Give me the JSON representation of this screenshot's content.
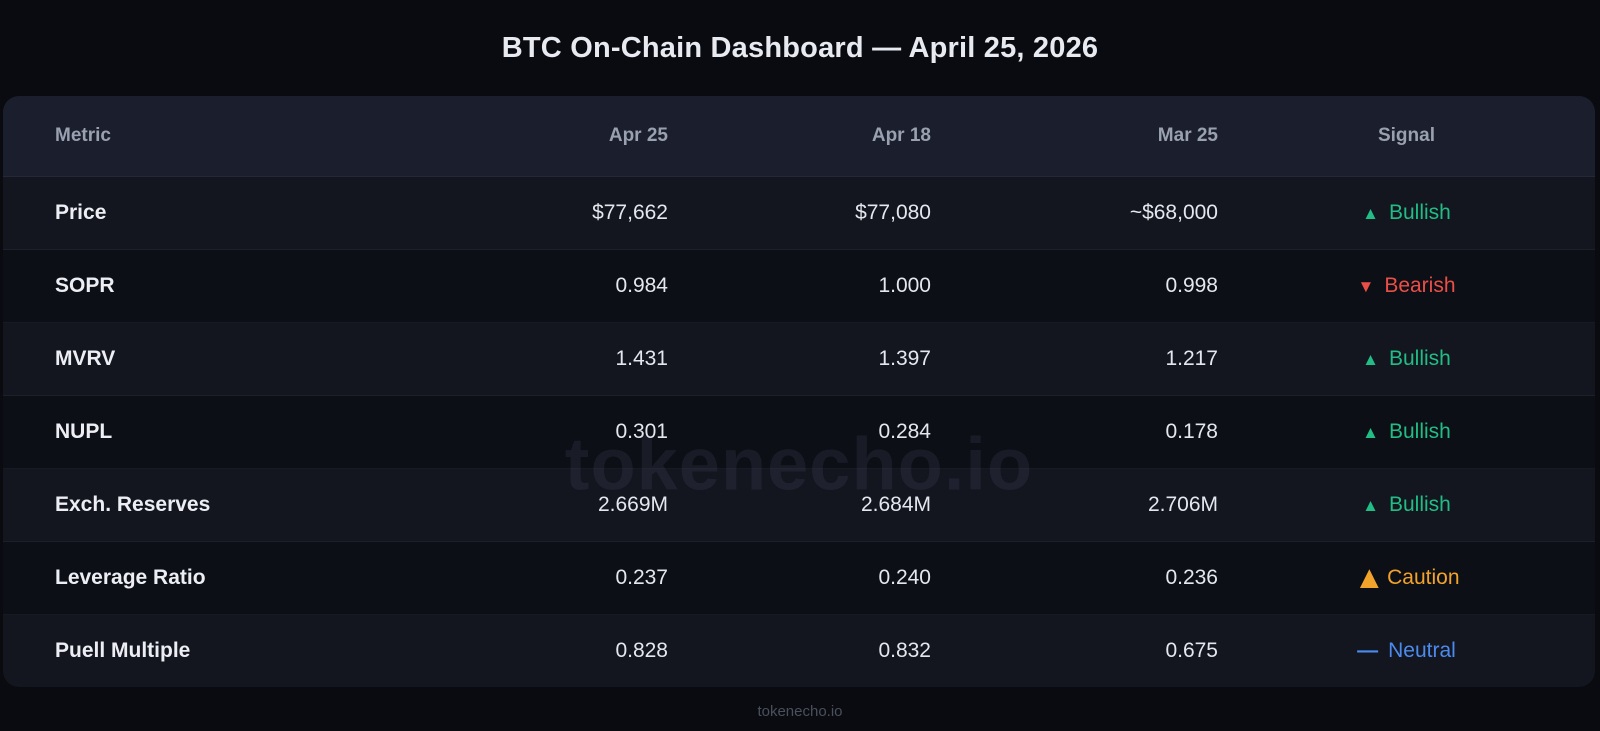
{
  "title": "BTC On-Chain Dashboard — April 25, 2026",
  "watermark": "tokenecho.io",
  "footer": "tokenecho.io",
  "colors": {
    "bullish": "#22bd84",
    "bearish": "#ea4f47",
    "caution": "#f2a32b",
    "neutral": "#4b8bee",
    "header_bg": "#1b1e2c",
    "row_light": "#13151f",
    "row_dark": "#0d0f16"
  },
  "table": {
    "columns": [
      "Metric",
      "Apr 25",
      "Apr 18",
      "Mar 25",
      "Signal"
    ],
    "rows": [
      {
        "metric": "Price",
        "apr25": "$77,662",
        "apr18": "$77,080",
        "mar25": "~$68,000",
        "signal": {
          "icon": "▲",
          "icon_name": "triangle-up-icon",
          "icon_size": "small",
          "label": "Bullish",
          "type": "bullish"
        }
      },
      {
        "metric": "SOPR",
        "apr25": "0.984",
        "apr18": "1.000",
        "mar25": "0.998",
        "signal": {
          "icon": "▼",
          "icon_name": "triangle-down-icon",
          "icon_size": "small",
          "label": "Bearish",
          "type": "bearish"
        }
      },
      {
        "metric": "MVRV",
        "apr25": "1.431",
        "apr18": "1.397",
        "mar25": "1.217",
        "signal": {
          "icon": "▲",
          "icon_name": "triangle-up-icon",
          "icon_size": "small",
          "label": "Bullish",
          "type": "bullish"
        }
      },
      {
        "metric": "NUPL",
        "apr25": "0.301",
        "apr18": "0.284",
        "mar25": "0.178",
        "signal": {
          "icon": "▲",
          "icon_name": "triangle-up-icon",
          "icon_size": "small",
          "label": "Bullish",
          "type": "bullish"
        }
      },
      {
        "metric": "Exch. Reserves",
        "apr25": "2.669M",
        "apr18": "2.684M",
        "mar25": "2.706M",
        "signal": {
          "icon": "▲",
          "icon_name": "triangle-up-icon",
          "icon_size": "small",
          "label": "Bullish",
          "type": "bullish"
        }
      },
      {
        "metric": "Leverage Ratio",
        "apr25": "0.237",
        "apr18": "0.240",
        "mar25": "0.236",
        "signal": {
          "icon": "▲",
          "icon_name": "warning-triangle-icon",
          "icon_size": "big",
          "label": "Caution",
          "type": "caution"
        }
      },
      {
        "metric": "Puell Multiple",
        "apr25": "0.828",
        "apr18": "0.832",
        "mar25": "0.675",
        "signal": {
          "icon": "—",
          "icon_name": "dash-icon",
          "icon_size": "dash",
          "label": "Neutral",
          "type": "neutral"
        }
      }
    ]
  }
}
